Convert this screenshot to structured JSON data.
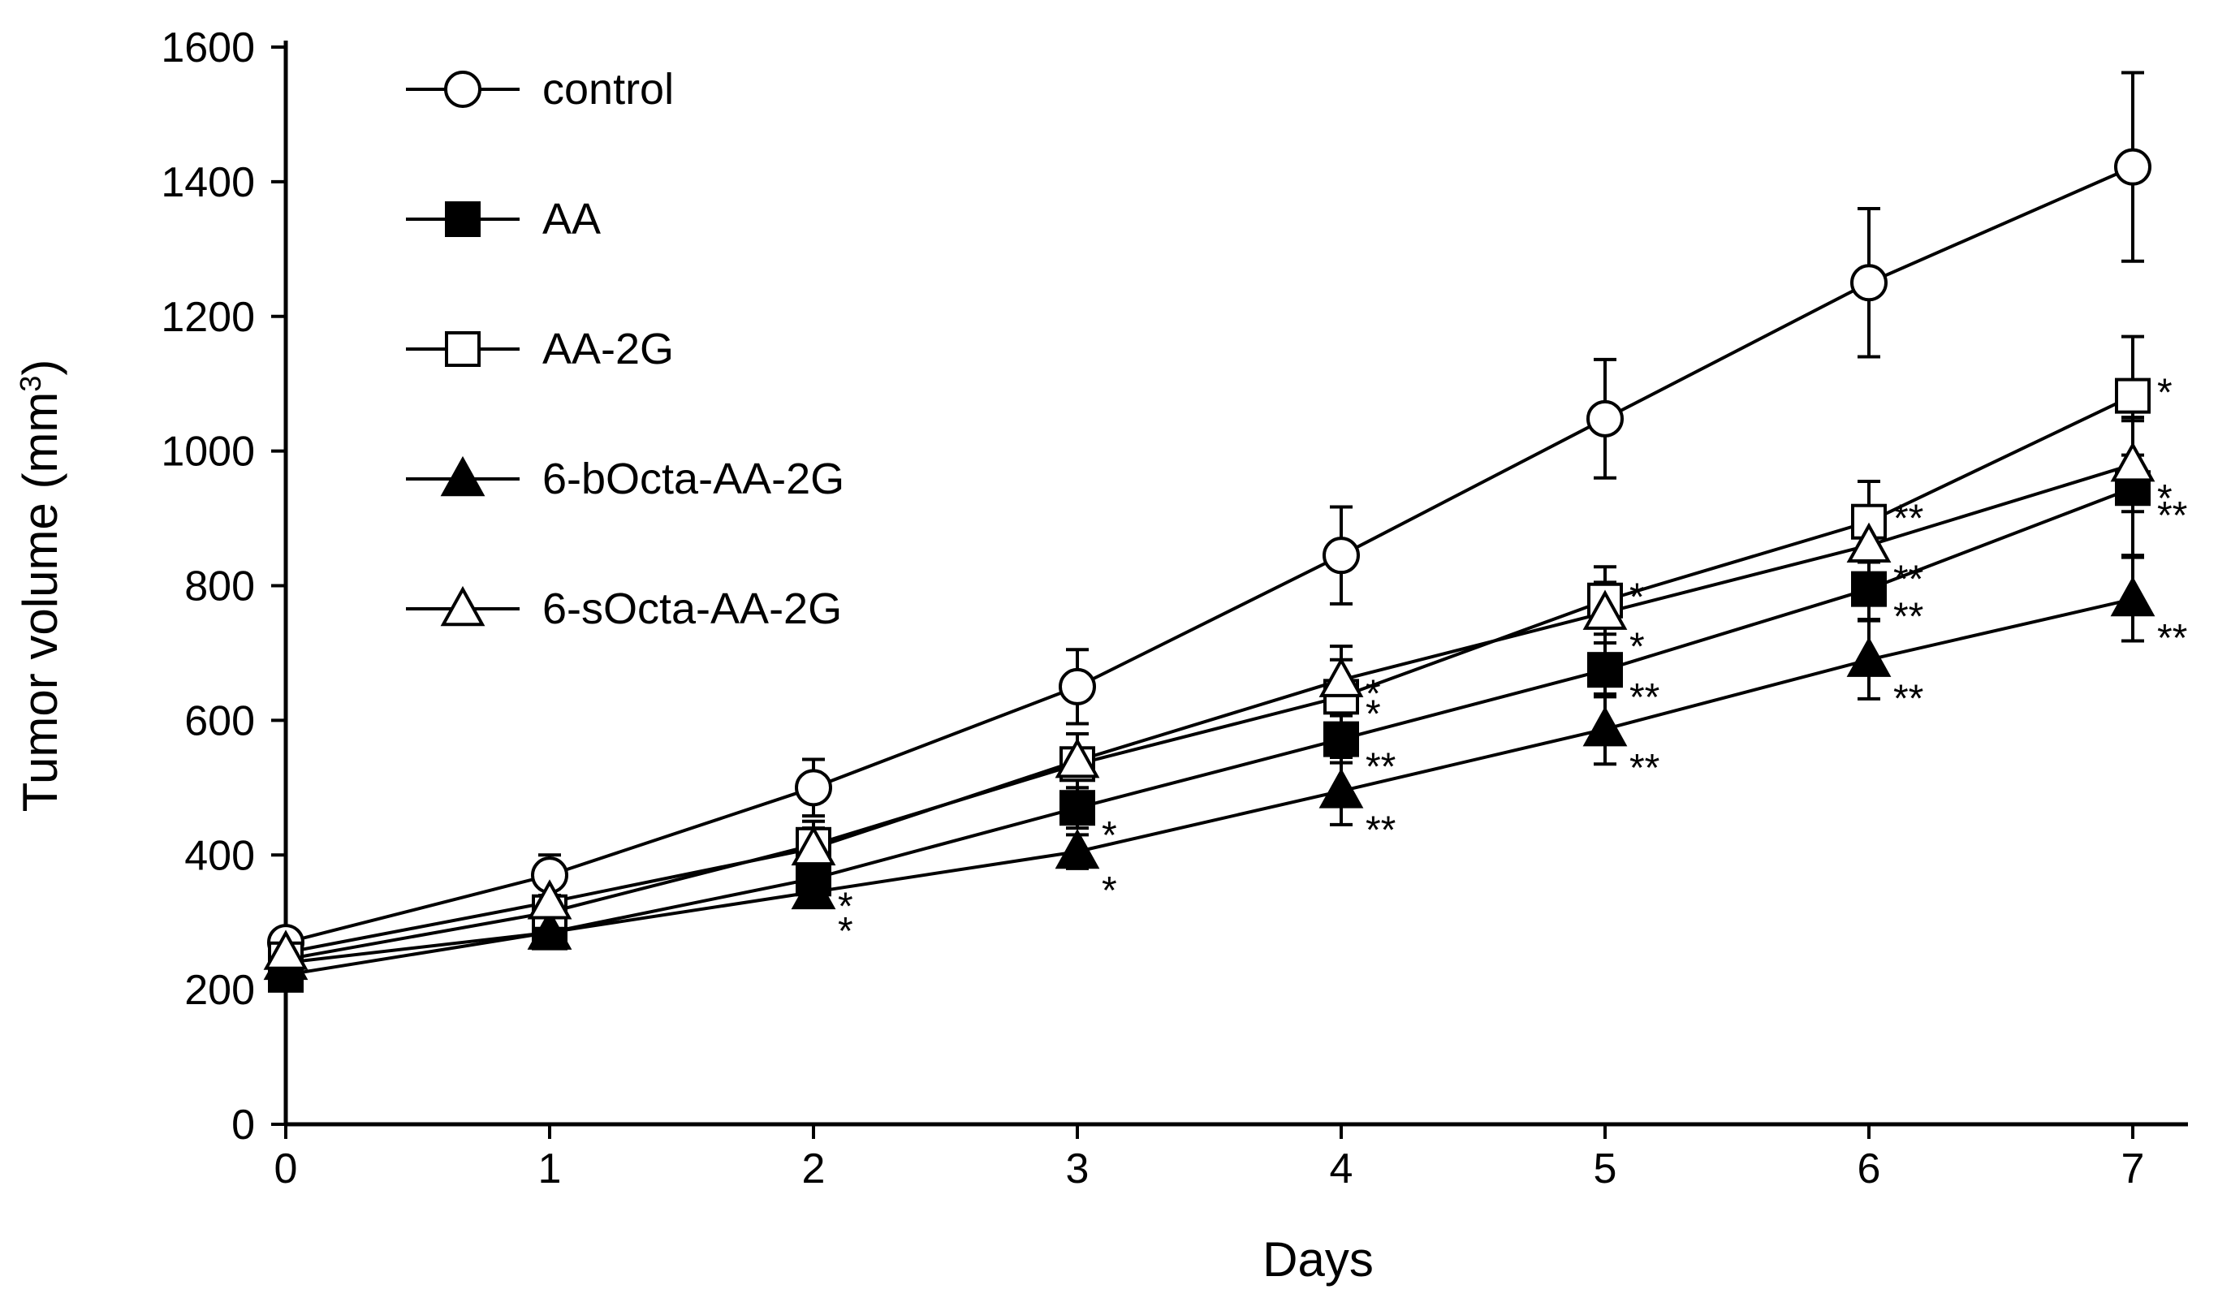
{
  "chart_data": {
    "type": "line",
    "xlabel": "Days",
    "ylabel": "Tumor volume (mm",
    "ylabel_sup": "3",
    "ylabel_close": ")",
    "x": [
      0,
      1,
      2,
      3,
      4,
      5,
      6,
      7
    ],
    "xlim": [
      0,
      7.2
    ],
    "ylim": [
      0,
      1600
    ],
    "xticks": [
      0,
      1,
      2,
      3,
      4,
      5,
      6,
      7
    ],
    "yticks": [
      0,
      200,
      400,
      600,
      800,
      1000,
      1200,
      1400,
      1600
    ],
    "grid": false,
    "legend_position": "top-left",
    "series": [
      {
        "name": "control",
        "marker": "circle-open",
        "values": [
          270,
          370,
          500,
          650,
          845,
          1048,
          1250,
          1422
        ],
        "error": [
          10,
          30,
          42,
          55,
          72,
          88,
          110,
          140
        ],
        "sig": [
          "",
          "",
          "",
          "",
          "",
          "",
          "",
          ""
        ]
      },
      {
        "name": "AA",
        "marker": "square-filled",
        "values": [
          222,
          285,
          365,
          470,
          572,
          675,
          795,
          945
        ],
        "error": [
          10,
          15,
          25,
          30,
          35,
          40,
          45,
          100
        ],
        "sig": [
          "",
          "",
          "*",
          "*",
          "**",
          "**",
          "**",
          "**"
        ]
      },
      {
        "name": "AA-2G",
        "marker": "square-open",
        "values": [
          245,
          315,
          415,
          535,
          635,
          778,
          895,
          1082
        ],
        "error": [
          10,
          20,
          35,
          45,
          55,
          50,
          60,
          88
        ],
        "sig": [
          "",
          "",
          "",
          "",
          "*",
          "*",
          "**",
          "*"
        ]
      },
      {
        "name": "6-bOcta-AA-2G",
        "marker": "triangle-filled",
        "values": [
          240,
          285,
          345,
          405,
          495,
          587,
          690,
          780
        ],
        "error": [
          10,
          15,
          18,
          25,
          50,
          52,
          58,
          62
        ],
        "sig": [
          "",
          "",
          "*",
          "*",
          "**",
          "**",
          "**",
          "**"
        ]
      },
      {
        "name": "6-sOcta-AA-2G",
        "marker": "triangle-open",
        "values": [
          255,
          330,
          410,
          540,
          660,
          760,
          860,
          980
        ],
        "error": [
          10,
          20,
          30,
          40,
          50,
          45,
          55,
          70
        ],
        "sig": [
          "",
          "",
          "",
          "",
          "*",
          "*",
          "**",
          "*"
        ]
      }
    ]
  }
}
